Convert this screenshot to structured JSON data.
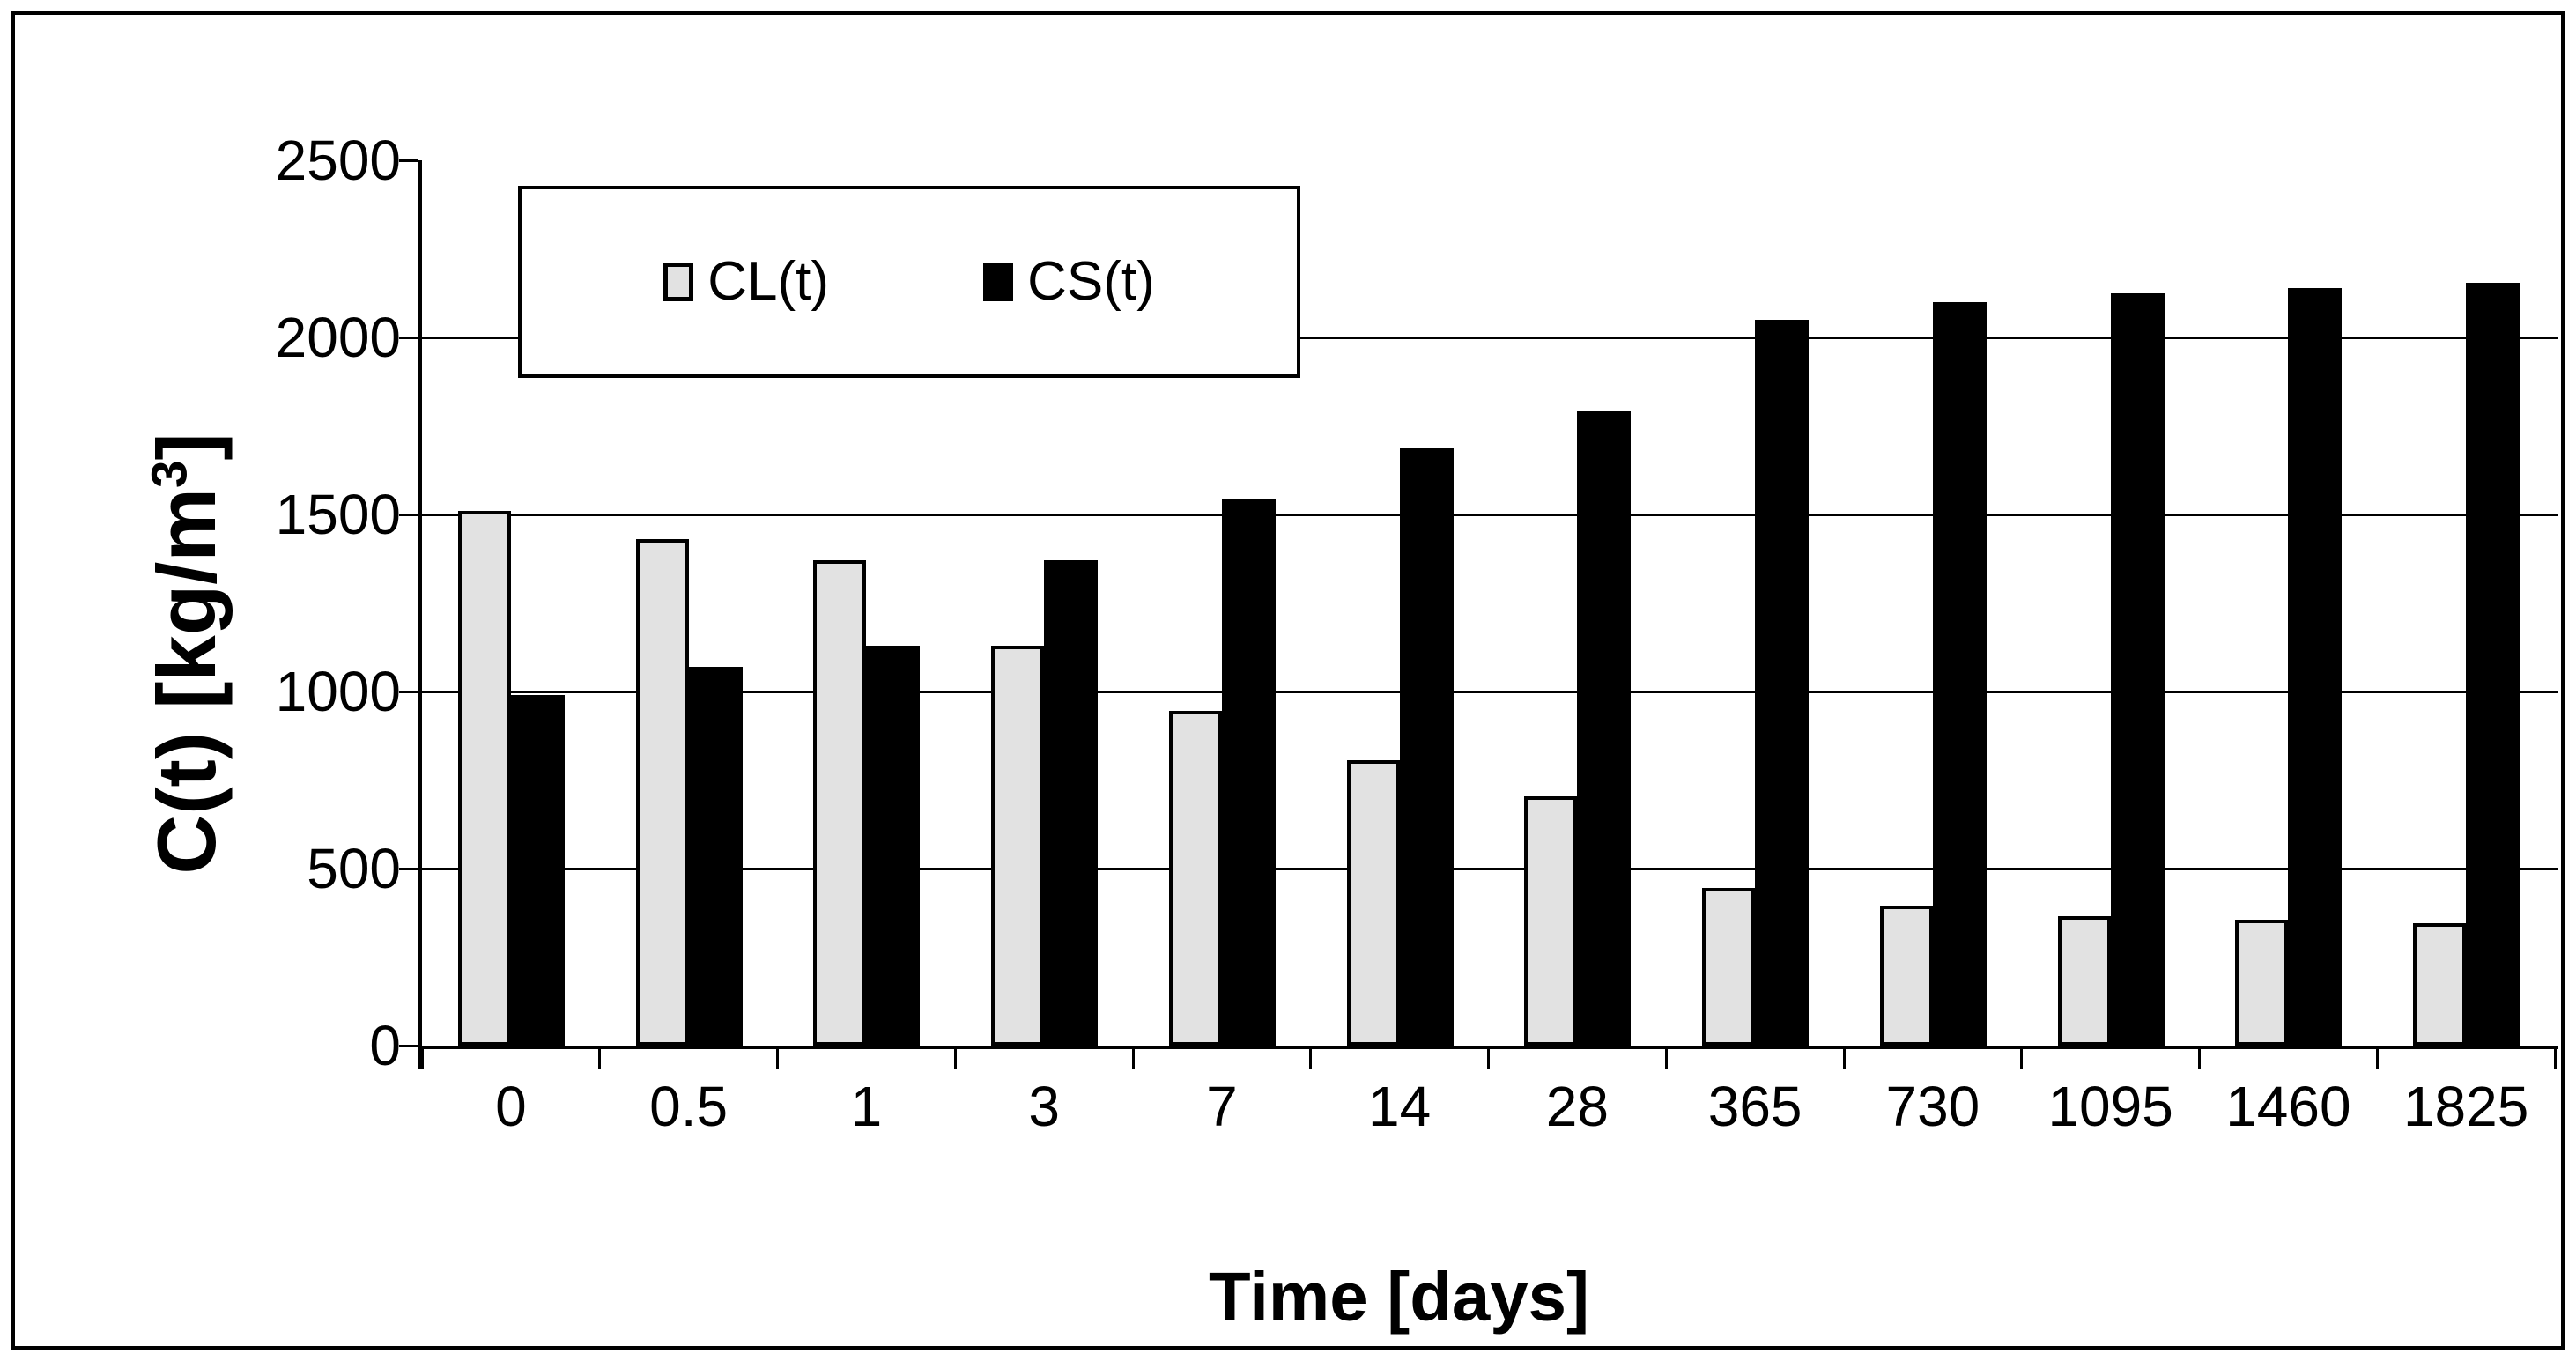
{
  "chart_data": {
    "type": "bar",
    "title": "",
    "xlabel": "Time [days]",
    "ylabel": "C(t) [kg/m³]",
    "ylabel_parts": {
      "main": "C(t) [kg/m",
      "sup": "3",
      "end": "]"
    },
    "categories": [
      "0",
      "0.5",
      "1",
      "3",
      "7",
      "14",
      "28",
      "365",
      "730",
      "1095",
      "1460",
      "1825"
    ],
    "series": [
      {
        "name": "CL(t)",
        "color": "#e2e2e2",
        "outline": "#000000",
        "values": [
          1510,
          1430,
          1370,
          1130,
          945,
          805,
          705,
          445,
          395,
          365,
          355,
          345
        ]
      },
      {
        "name": "CS(t)",
        "color": "#000000",
        "outline": "#000000",
        "values": [
          990,
          1070,
          1130,
          1370,
          1545,
          1690,
          1790,
          2050,
          2100,
          2125,
          2140,
          2155
        ]
      }
    ],
    "ylim": [
      0,
      2500
    ],
    "yticks": [
      0,
      500,
      1000,
      1500,
      2000,
      2500
    ],
    "grid": true,
    "gridline_values": [
      500,
      1000,
      1500,
      2000
    ],
    "legend_position": "top-left-inside"
  },
  "colors": {
    "background": "#ffffff",
    "frame_border": "#000000",
    "axis": "#000000",
    "gridline": "#000000",
    "bar_cl_fill": "#e2e2e2",
    "bar_cs_fill": "#000000",
    "text": "#000000"
  }
}
